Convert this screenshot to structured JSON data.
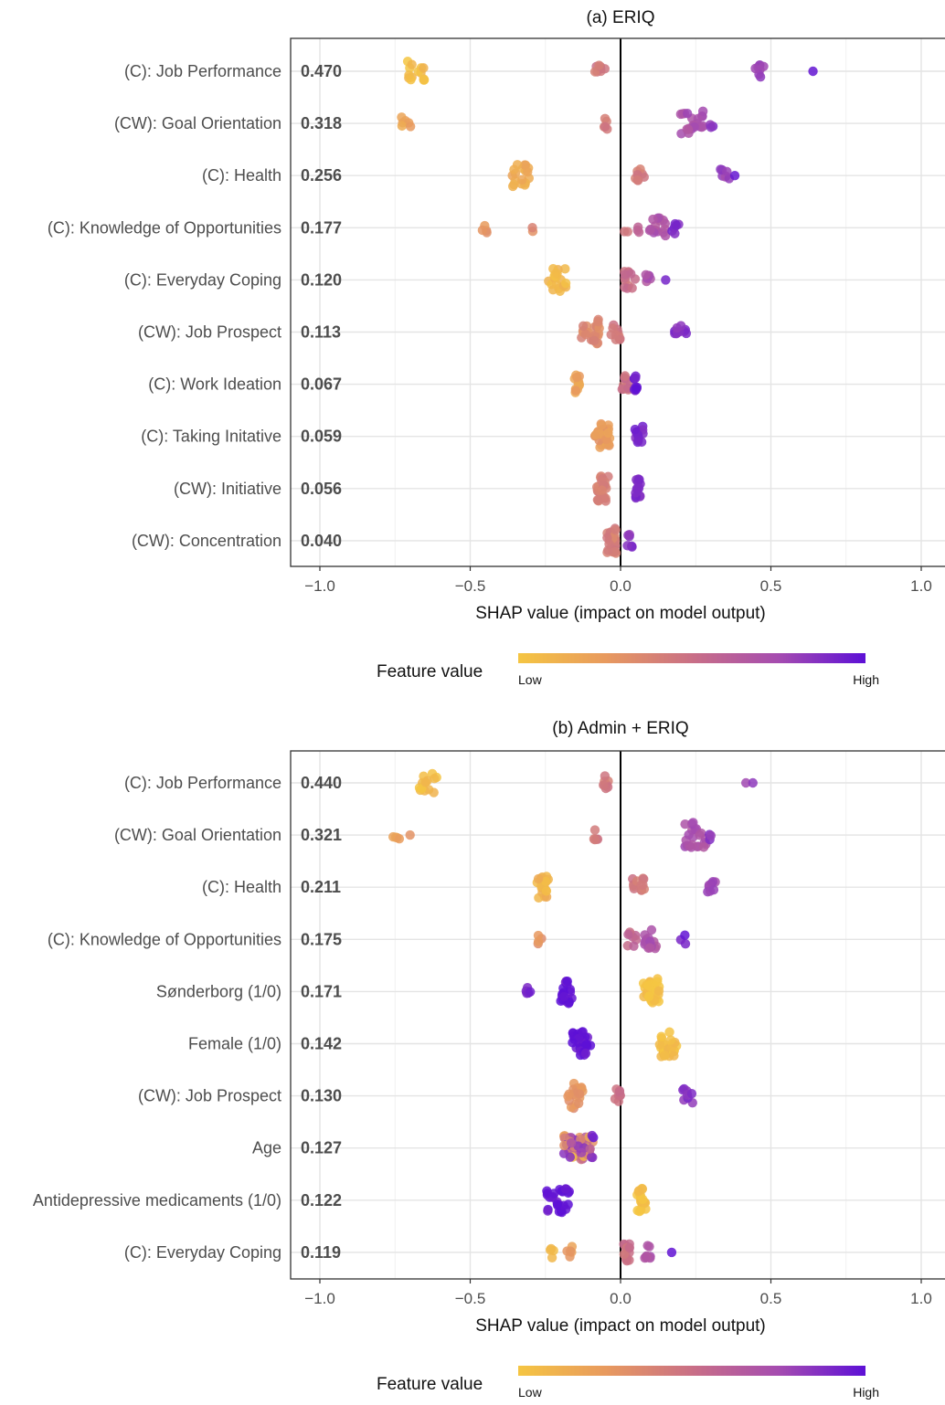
{
  "chart_data": [
    {
      "type": "scatter",
      "title": "(a) ERIQ",
      "xlabel": "SHAP value (impact on model output)",
      "xlim": [
        -1.1,
        1.1
      ],
      "xticks": [
        -1.0,
        -0.5,
        0.0,
        0.5,
        1.0
      ],
      "xtick_labels": [
        "−1.0",
        "−0.5",
        "0.0",
        "0.5",
        "1.0"
      ],
      "grid": true,
      "legend": {
        "title": "Feature value",
        "low": "Low",
        "high": "High",
        "placement": "bottom",
        "colors": [
          "#f5c542",
          "#e89a5e",
          "#c96f86",
          "#a54cb0",
          "#5d10d6"
        ]
      },
      "features": [
        {
          "label": "(C): Job Performance",
          "importance": "0.470",
          "clusters": [
            {
              "x": -0.68,
              "spread": 0.03,
              "n": 14,
              "c": 0.05
            },
            {
              "x": -0.07,
              "spread": 0.02,
              "n": 8,
              "c": 0.45
            },
            {
              "x": 0.46,
              "spread": 0.02,
              "n": 8,
              "c": 0.78
            },
            {
              "x": 0.64,
              "spread": 0.0,
              "n": 1,
              "c": 1.0
            }
          ]
        },
        {
          "label": "(CW): Goal Orientation",
          "importance": "0.318",
          "clusters": [
            {
              "x": -0.71,
              "spread": 0.02,
              "n": 6,
              "c": 0.2
            },
            {
              "x": -0.05,
              "spread": 0.01,
              "n": 5,
              "c": 0.45
            },
            {
              "x": 0.24,
              "spread": 0.04,
              "n": 22,
              "c": 0.72
            },
            {
              "x": 0.3,
              "spread": 0.01,
              "n": 3,
              "c": 0.85
            }
          ]
        },
        {
          "label": "(C): Health",
          "importance": "0.256",
          "clusters": [
            {
              "x": -0.33,
              "spread": 0.03,
              "n": 18,
              "c": 0.15
            },
            {
              "x": 0.06,
              "spread": 0.02,
              "n": 8,
              "c": 0.45
            },
            {
              "x": 0.35,
              "spread": 0.02,
              "n": 7,
              "c": 0.8
            },
            {
              "x": 0.38,
              "spread": 0.0,
              "n": 1,
              "c": 1.0
            }
          ]
        },
        {
          "label": "(C): Knowledge of Opportunities",
          "importance": "0.177",
          "clusters": [
            {
              "x": -0.45,
              "spread": 0.01,
              "n": 4,
              "c": 0.25
            },
            {
              "x": -0.29,
              "spread": 0.01,
              "n": 2,
              "c": 0.35
            },
            {
              "x": 0.02,
              "spread": 0.01,
              "n": 2,
              "c": 0.5
            },
            {
              "x": 0.06,
              "spread": 0.01,
              "n": 3,
              "c": 0.55
            },
            {
              "x": 0.12,
              "spread": 0.03,
              "n": 16,
              "c": 0.7
            },
            {
              "x": 0.19,
              "spread": 0.02,
              "n": 6,
              "c": 0.9
            }
          ]
        },
        {
          "label": "(C): Everyday Coping",
          "importance": "0.120",
          "clusters": [
            {
              "x": -0.21,
              "spread": 0.03,
              "n": 18,
              "c": 0.08
            },
            {
              "x": 0.03,
              "spread": 0.02,
              "n": 12,
              "c": 0.5
            },
            {
              "x": 0.09,
              "spread": 0.01,
              "n": 6,
              "c": 0.7
            },
            {
              "x": 0.15,
              "spread": 0.0,
              "n": 1,
              "c": 0.95
            }
          ]
        },
        {
          "label": "(CW): Job Prospect",
          "importance": "0.113",
          "clusters": [
            {
              "x": -0.1,
              "spread": 0.03,
              "n": 26,
              "c": 0.35
            },
            {
              "x": -0.02,
              "spread": 0.02,
              "n": 10,
              "c": 0.45
            },
            {
              "x": 0.2,
              "spread": 0.02,
              "n": 10,
              "c": 0.85
            }
          ]
        },
        {
          "label": "(C): Work Ideation",
          "importance": "0.067",
          "clusters": [
            {
              "x": -0.14,
              "spread": 0.015,
              "n": 12,
              "c": 0.2
            },
            {
              "x": 0.02,
              "spread": 0.015,
              "n": 12,
              "c": 0.5
            },
            {
              "x": 0.05,
              "spread": 0.005,
              "n": 10,
              "c": 0.95
            }
          ]
        },
        {
          "label": "(C): Taking Initative",
          "importance": "0.059",
          "clusters": [
            {
              "x": -0.06,
              "spread": 0.025,
              "n": 30,
              "c": 0.25
            },
            {
              "x": 0.06,
              "spread": 0.015,
              "n": 14,
              "c": 0.9
            }
          ]
        },
        {
          "label": "(CW): Initiative",
          "importance": "0.056",
          "clusters": [
            {
              "x": -0.06,
              "spread": 0.02,
              "n": 24,
              "c": 0.4
            },
            {
              "x": 0.06,
              "spread": 0.01,
              "n": 14,
              "c": 0.9
            }
          ]
        },
        {
          "label": "(CW): Concentration",
          "importance": "0.040",
          "clusters": [
            {
              "x": -0.03,
              "spread": 0.015,
              "n": 24,
              "c": 0.4
            },
            {
              "x": 0.03,
              "spread": 0.01,
              "n": 6,
              "c": 0.85
            }
          ]
        }
      ]
    },
    {
      "type": "scatter",
      "title": "(b) Admin + ERIQ",
      "xlabel": "SHAP value (impact on model output)",
      "xlim": [
        -1.1,
        1.1
      ],
      "xticks": [
        -1.0,
        -0.5,
        0.0,
        0.5,
        1.0
      ],
      "xtick_labels": [
        "−1.0",
        "−0.5",
        "0.0",
        "0.5",
        "1.0"
      ],
      "grid": true,
      "legend": {
        "title": "Feature value",
        "low": "Low",
        "high": "High",
        "placement": "bottom",
        "colors": [
          "#f5c542",
          "#e89a5e",
          "#c96f86",
          "#a54cb0",
          "#5d10d6"
        ]
      },
      "features": [
        {
          "label": "(C): Job Performance",
          "importance": "0.440",
          "clusters": [
            {
              "x": -0.64,
              "spread": 0.03,
              "n": 14,
              "c": 0.05
            },
            {
              "x": -0.05,
              "spread": 0.01,
              "n": 8,
              "c": 0.45
            },
            {
              "x": 0.41,
              "spread": 0.01,
              "n": 1,
              "c": 0.8
            },
            {
              "x": 0.44,
              "spread": 0.0,
              "n": 1,
              "c": 0.82
            }
          ]
        },
        {
          "label": "(CW): Goal Orientation",
          "importance": "0.321",
          "clusters": [
            {
              "x": -0.75,
              "spread": 0.02,
              "n": 4,
              "c": 0.2
            },
            {
              "x": -0.7,
              "spread": 0.0,
              "n": 1,
              "c": 0.25
            },
            {
              "x": -0.08,
              "spread": 0.01,
              "n": 5,
              "c": 0.45
            },
            {
              "x": 0.25,
              "spread": 0.04,
              "n": 22,
              "c": 0.72
            },
            {
              "x": 0.3,
              "spread": 0.01,
              "n": 3,
              "c": 0.85
            }
          ]
        },
        {
          "label": "(C): Health",
          "importance": "0.211",
          "clusters": [
            {
              "x": -0.26,
              "spread": 0.02,
              "n": 18,
              "c": 0.1
            },
            {
              "x": 0.06,
              "spread": 0.02,
              "n": 12,
              "c": 0.45
            },
            {
              "x": 0.3,
              "spread": 0.02,
              "n": 8,
              "c": 0.78
            }
          ]
        },
        {
          "label": "(C): Knowledge of Opportunities",
          "importance": "0.175",
          "clusters": [
            {
              "x": -0.27,
              "spread": 0.01,
              "n": 4,
              "c": 0.3
            },
            {
              "x": 0.04,
              "spread": 0.02,
              "n": 8,
              "c": 0.55
            },
            {
              "x": 0.1,
              "spread": 0.02,
              "n": 14,
              "c": 0.7
            },
            {
              "x": 0.21,
              "spread": 0.01,
              "n": 3,
              "c": 0.92
            }
          ]
        },
        {
          "label": "Sønderborg (1/0)",
          "importance": "0.171",
          "clusters": [
            {
              "x": -0.31,
              "spread": 0.01,
              "n": 5,
              "c": 0.95
            },
            {
              "x": -0.18,
              "spread": 0.02,
              "n": 18,
              "c": 0.97
            },
            {
              "x": 0.1,
              "spread": 0.03,
              "n": 30,
              "c": 0.02
            }
          ]
        },
        {
          "label": "Female (1/0)",
          "importance": "0.142",
          "clusters": [
            {
              "x": -0.13,
              "spread": 0.03,
              "n": 32,
              "c": 0.98
            },
            {
              "x": 0.16,
              "spread": 0.03,
              "n": 30,
              "c": 0.03
            }
          ]
        },
        {
          "label": "(CW): Job Prospect",
          "importance": "0.130",
          "clusters": [
            {
              "x": -0.15,
              "spread": 0.025,
              "n": 20,
              "c": 0.3
            },
            {
              "x": -0.01,
              "spread": 0.01,
              "n": 8,
              "c": 0.5
            },
            {
              "x": 0.22,
              "spread": 0.02,
              "n": 8,
              "c": 0.85
            }
          ]
        },
        {
          "label": "Age",
          "importance": "0.127",
          "clusters": [
            {
              "x": -0.14,
              "spread": 0.05,
              "n": 60,
              "c": -1
            }
          ]
        },
        {
          "label": "Antidepressive medicaments (1/0)",
          "importance": "0.122",
          "clusters": [
            {
              "x": -0.21,
              "spread": 0.04,
              "n": 26,
              "c": 0.97
            },
            {
              "x": 0.07,
              "spread": 0.015,
              "n": 20,
              "c": 0.02
            }
          ]
        },
        {
          "label": "(C): Everyday Coping",
          "importance": "0.119",
          "clusters": [
            {
              "x": -0.23,
              "spread": 0.01,
              "n": 4,
              "c": 0.1
            },
            {
              "x": -0.17,
              "spread": 0.01,
              "n": 5,
              "c": 0.25
            },
            {
              "x": 0.02,
              "spread": 0.01,
              "n": 14,
              "c": 0.5
            },
            {
              "x": 0.09,
              "spread": 0.01,
              "n": 8,
              "c": 0.7
            },
            {
              "x": 0.17,
              "spread": 0.0,
              "n": 1,
              "c": 0.95
            }
          ]
        }
      ]
    }
  ]
}
